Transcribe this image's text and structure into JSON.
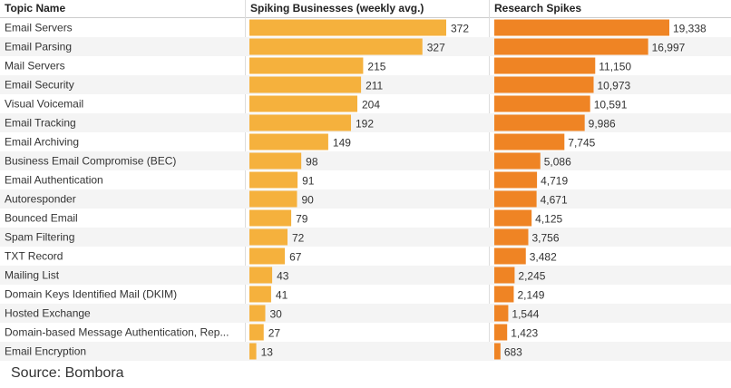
{
  "headers": {
    "topic": "Topic Name",
    "spiking": "Spiking Businesses (weekly avg.)",
    "research": "Research Spikes"
  },
  "source": "Source: Bombora",
  "colors": {
    "spiking_bar": "#F5B13D",
    "research_bar": "#EF8424",
    "row_alt": "#F4F4F4",
    "divider": "#CCCCCC"
  },
  "chart_data": {
    "type": "table",
    "title": "",
    "columns": [
      "Topic Name",
      "Spiking Businesses (weekly avg.)",
      "Research Spikes"
    ],
    "rows": [
      {
        "topic": "Email Servers",
        "spiking": 372,
        "research": 19338
      },
      {
        "topic": "Email Parsing",
        "spiking": 327,
        "research": 16997
      },
      {
        "topic": "Mail Servers",
        "spiking": 215,
        "research": 11150
      },
      {
        "topic": "Email Security",
        "spiking": 211,
        "research": 10973
      },
      {
        "topic": "Visual Voicemail",
        "spiking": 204,
        "research": 10591
      },
      {
        "topic": "Email Tracking",
        "spiking": 192,
        "research": 9986
      },
      {
        "topic": "Email Archiving",
        "spiking": 149,
        "research": 7745
      },
      {
        "topic": "Business Email Compromise (BEC)",
        "spiking": 98,
        "research": 5086
      },
      {
        "topic": "Email Authentication",
        "spiking": 91,
        "research": 4719
      },
      {
        "topic": "Autoresponder",
        "spiking": 90,
        "research": 4671
      },
      {
        "topic": "Bounced Email",
        "spiking": 79,
        "research": 4125
      },
      {
        "topic": "Spam Filtering",
        "spiking": 72,
        "research": 3756
      },
      {
        "topic": "TXT Record",
        "spiking": 67,
        "research": 3482
      },
      {
        "topic": "Mailing List",
        "spiking": 43,
        "research": 2245
      },
      {
        "topic": "Domain Keys Identified Mail (DKIM)",
        "spiking": 41,
        "research": 2149
      },
      {
        "topic": "Hosted Exchange",
        "spiking": 30,
        "research": 1544
      },
      {
        "topic": "Domain-based Message Authentication, Rep...",
        "spiking": 27,
        "research": 1423
      },
      {
        "topic": "Email Encryption",
        "spiking": 13,
        "research": 683
      }
    ],
    "spiking_max": 372,
    "research_max": 19338
  }
}
